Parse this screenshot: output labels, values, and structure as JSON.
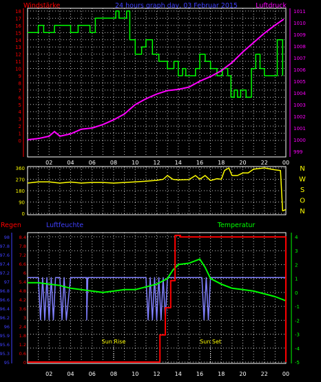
{
  "title": "24 hours graph day,  03 Februar 2015",
  "colors": {
    "wind": "#ff0000",
    "pressure": "#ff00ff",
    "gust": "#00ff00",
    "direction": "#ffff00",
    "rain": "#ff0000",
    "humidity": "#8080ff",
    "temperature": "#00ff00",
    "axis": "#ffffff",
    "grid": "#ffffff",
    "labels_blue": "#4040ff",
    "labels_yellow": "#ffff00",
    "labels_green": "#00ff00"
  },
  "x_ticks": [
    "02",
    "04",
    "06",
    "08",
    "10",
    "12",
    "14",
    "16",
    "18",
    "20",
    "22",
    "00"
  ],
  "chart_data": [
    {
      "type": "line",
      "title": "24 hours graph day,  03 Februar 2015",
      "ylabel_left": "Windstärke",
      "ylabel_right": "Luftdruck",
      "y_left_ticks": [
        "0",
        "1",
        "2",
        "3",
        "4",
        "5",
        "6",
        "7",
        "8",
        "9",
        "10",
        "11",
        "12",
        "13",
        "14",
        "15",
        "16",
        "17",
        "18"
      ],
      "y_right_ticks": [
        "999",
        "1000",
        "1001",
        "1002",
        "1003",
        "1004",
        "1005",
        "1006",
        "1007",
        "1008",
        "1009",
        "1010",
        "1011"
      ],
      "ylim_left": [
        0,
        18
      ],
      "ylim_right": [
        999,
        1011
      ],
      "xlim": [
        0,
        24
      ],
      "series": [
        {
          "axis": "left",
          "points": [
            [
              0,
              15
            ],
            [
              1,
              15
            ],
            [
              1,
              16
            ],
            [
              1.5,
              16
            ],
            [
              1.5,
              15
            ],
            [
              2.5,
              15
            ],
            [
              2.5,
              16
            ],
            [
              4,
              16
            ],
            [
              4,
              15
            ],
            [
              4.7,
              15
            ],
            [
              4.7,
              16
            ],
            [
              5.8,
              16
            ],
            [
              5.8,
              15
            ],
            [
              6.3,
              15
            ],
            [
              6.3,
              17
            ],
            [
              8.2,
              17
            ],
            [
              8.2,
              18
            ],
            [
              8.5,
              18
            ],
            [
              8.5,
              17
            ],
            [
              9.2,
              17
            ],
            [
              9.2,
              18
            ],
            [
              9.5,
              18
            ],
            [
              9.5,
              14
            ],
            [
              10,
              14
            ],
            [
              10,
              12
            ],
            [
              10.6,
              12
            ],
            [
              10.6,
              13
            ],
            [
              11,
              13
            ],
            [
              11,
              14
            ],
            [
              11.6,
              14
            ],
            [
              11.6,
              12
            ],
            [
              12.2,
              12
            ],
            [
              12.2,
              11
            ],
            [
              13,
              11
            ],
            [
              13,
              10
            ],
            [
              13.6,
              10
            ],
            [
              13.6,
              11
            ],
            [
              14,
              11
            ],
            [
              14,
              9
            ],
            [
              14.4,
              9
            ],
            [
              14.4,
              10
            ],
            [
              14.7,
              10
            ],
            [
              14.7,
              9
            ],
            [
              15.6,
              9
            ],
            [
              15.6,
              10
            ],
            [
              16,
              10
            ],
            [
              16,
              12
            ],
            [
              16.5,
              12
            ],
            [
              16.5,
              11
            ],
            [
              17,
              11
            ],
            [
              17,
              10
            ],
            [
              17.6,
              10
            ],
            [
              17.6,
              9
            ],
            [
              18.1,
              9
            ],
            [
              18.1,
              10
            ],
            [
              18.6,
              10
            ],
            [
              18.6,
              9
            ],
            [
              18.9,
              9
            ],
            [
              18.9,
              6
            ],
            [
              19.2,
              6
            ],
            [
              19.2,
              7
            ],
            [
              19.5,
              7
            ],
            [
              19.5,
              6
            ],
            [
              19.8,
              6
            ],
            [
              19.8,
              7
            ],
            [
              20.3,
              7
            ],
            [
              20.3,
              6
            ],
            [
              20.8,
              6
            ],
            [
              20.8,
              10
            ],
            [
              21.2,
              10
            ],
            [
              21.2,
              12
            ],
            [
              21.6,
              12
            ],
            [
              21.6,
              10
            ],
            [
              22,
              10
            ],
            [
              22,
              9
            ],
            [
              23.2,
              9
            ],
            [
              23.2,
              14
            ],
            [
              23.7,
              14
            ],
            [
              23.7,
              9
            ]
          ]
        },
        {
          "axis": "right",
          "points": [
            [
              0,
              1000
            ],
            [
              1,
              1000.1
            ],
            [
              2,
              1000.3
            ],
            [
              2.5,
              1000.7
            ],
            [
              3,
              1000.3
            ],
            [
              4,
              1000.5
            ],
            [
              5,
              1000.9
            ],
            [
              6,
              1001
            ],
            [
              7,
              1001.3
            ],
            [
              8,
              1001.7
            ],
            [
              9,
              1002.2
            ],
            [
              9.5,
              1002.6
            ],
            [
              10,
              1003
            ],
            [
              11,
              1003.5
            ],
            [
              12,
              1003.9
            ],
            [
              13,
              1004.2
            ],
            [
              14,
              1004.3
            ],
            [
              15,
              1004.5
            ],
            [
              16,
              1005
            ],
            [
              17,
              1005.4
            ],
            [
              18,
              1005.9
            ],
            [
              19,
              1006.6
            ],
            [
              20,
              1007.5
            ],
            [
              21,
              1008.3
            ],
            [
              22,
              1009.1
            ],
            [
              23,
              1009.8
            ],
            [
              23.8,
              1010.3
            ]
          ]
        }
      ]
    },
    {
      "type": "line",
      "ylabel_right": [
        "N",
        "W",
        "S",
        "O",
        "N"
      ],
      "y_ticks": [
        "0",
        "90",
        "180",
        "270",
        "360"
      ],
      "ylim": [
        0,
        360
      ],
      "xlim": [
        0,
        24
      ],
      "series": [
        {
          "points": [
            [
              0,
              240
            ],
            [
              1,
              250
            ],
            [
              2,
              250
            ],
            [
              3,
              240
            ],
            [
              4,
              248
            ],
            [
              5,
              240
            ],
            [
              6,
              245
            ],
            [
              7,
              245
            ],
            [
              8,
              240
            ],
            [
              9,
              245
            ],
            [
              10,
              250
            ],
            [
              11,
              255
            ],
            [
              12,
              262
            ],
            [
              12.6,
              270
            ],
            [
              13,
              300
            ],
            [
              13.5,
              270
            ],
            [
              14,
              265
            ],
            [
              15,
              268
            ],
            [
              15.6,
              300
            ],
            [
              16,
              270
            ],
            [
              16.5,
              300
            ],
            [
              17,
              260
            ],
            [
              17.6,
              275
            ],
            [
              18,
              270
            ],
            [
              18.3,
              340
            ],
            [
              18.7,
              360
            ],
            [
              19,
              300
            ],
            [
              19.5,
              300
            ],
            [
              20,
              320
            ],
            [
              20.5,
              320
            ],
            [
              21,
              350
            ],
            [
              22,
              360
            ],
            [
              23,
              345
            ],
            [
              23.5,
              340
            ],
            [
              23.7,
              20
            ],
            [
              24,
              30
            ]
          ]
        }
      ]
    },
    {
      "type": "line",
      "ylabel_left_rain": "Regen",
      "ylabel_left_humidity": "Luftfeuchte",
      "ylabel_right": "Temperatur",
      "y_rain_ticks": [
        "0",
        "0.6",
        "1.2",
        "1.8",
        "2.4",
        "3",
        "3.6",
        "4.2",
        "4.8",
        "5.4",
        "6",
        "6.6",
        "7.2",
        "7.8",
        "8.4"
      ],
      "y_humidity_ticks": [
        "95",
        "95.3",
        "95.6",
        "95.9",
        "96",
        "96.2",
        "96.4",
        "96.6",
        "96.8",
        "97",
        "97.2",
        "97.4",
        "97.6",
        "97.8",
        "98"
      ],
      "y_temperature_ticks": [
        "-5",
        "-4",
        "-3",
        "-2",
        "-1",
        "0",
        "1",
        "2",
        "3",
        "4"
      ],
      "ylim_rain": [
        0,
        8.4
      ],
      "ylim_humidity": [
        95,
        98
      ],
      "ylim_temperature": [
        -5,
        4
      ],
      "xlim": [
        0,
        24
      ],
      "annotations": [
        "Sun Rise",
        "Sun Set"
      ],
      "annotation_x": [
        8,
        17
      ],
      "series": [
        {
          "axis": "rain",
          "points": [
            [
              0,
              0
            ],
            [
              12.3,
              0
            ],
            [
              12.3,
              1.8
            ],
            [
              12.8,
              1.8
            ],
            [
              12.8,
              3.6
            ],
            [
              13.3,
              3.6
            ],
            [
              13.3,
              5.4
            ],
            [
              13.7,
              5.4
            ],
            [
              13.7,
              8.4
            ],
            [
              14.2,
              8.4
            ],
            [
              14.2,
              8.3
            ],
            [
              24,
              8.3
            ],
            [
              24,
              0
            ]
          ]
        },
        {
          "axis": "humidity",
          "points": [
            [
              0,
              97
            ],
            [
              1,
              97
            ],
            [
              1.2,
              96
            ],
            [
              1.4,
              97
            ],
            [
              1.6,
              96
            ],
            [
              1.8,
              97
            ],
            [
              2,
              96
            ],
            [
              2.2,
              97
            ],
            [
              2.4,
              96
            ],
            [
              2.6,
              97
            ],
            [
              3,
              97
            ],
            [
              3.2,
              96
            ],
            [
              3.4,
              97
            ],
            [
              3.6,
              96
            ],
            [
              4,
              97
            ],
            [
              5.5,
              97
            ],
            [
              5.5,
              96
            ],
            [
              5.6,
              97
            ],
            [
              11,
              97
            ],
            [
              11.2,
              96
            ],
            [
              11.4,
              97
            ],
            [
              11.6,
              96
            ],
            [
              11.8,
              97
            ],
            [
              12,
              96
            ],
            [
              12.2,
              97
            ],
            [
              12.4,
              96
            ],
            [
              12.6,
              97
            ],
            [
              12.8,
              96
            ],
            [
              13,
              97
            ],
            [
              16.2,
              97
            ],
            [
              16.4,
              96
            ],
            [
              16.6,
              97
            ],
            [
              16.8,
              96
            ],
            [
              17,
              97
            ],
            [
              24,
              97
            ]
          ]
        },
        {
          "axis": "temperature",
          "points": [
            [
              0,
              0.7
            ],
            [
              1,
              0.7
            ],
            [
              2,
              0.6
            ],
            [
              3,
              0.5
            ],
            [
              4,
              0.3
            ],
            [
              5,
              0.2
            ],
            [
              6,
              0.1
            ],
            [
              7,
              0
            ],
            [
              8,
              0.1
            ],
            [
              9,
              0.2
            ],
            [
              10,
              0.2
            ],
            [
              11,
              0.4
            ],
            [
              12,
              0.6
            ],
            [
              13,
              1
            ],
            [
              13.5,
              1.6
            ],
            [
              14,
              2
            ],
            [
              15,
              2.1
            ],
            [
              16,
              2.4
            ],
            [
              16.5,
              1.8
            ],
            [
              17,
              1
            ],
            [
              18,
              0.6
            ],
            [
              19,
              0.3
            ],
            [
              20,
              0.2
            ],
            [
              21,
              0.1
            ],
            [
              22,
              -0.1
            ],
            [
              23,
              -0.3
            ],
            [
              24,
              -0.6
            ]
          ]
        }
      ]
    }
  ]
}
